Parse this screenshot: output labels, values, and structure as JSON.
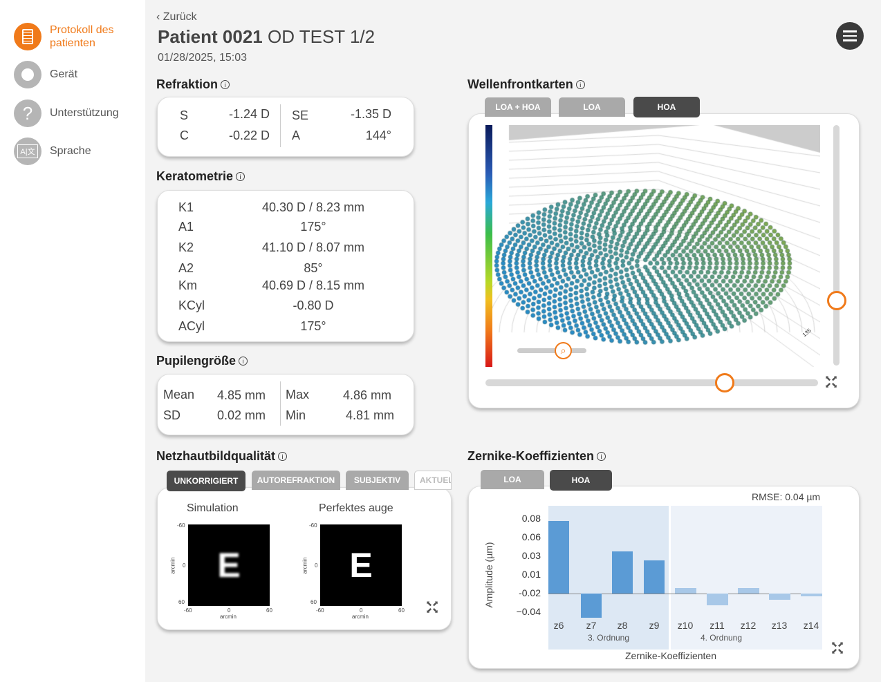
{
  "sidebar": {
    "items": [
      {
        "label": "Protokoll des patienten",
        "icon": "clipboard-icon"
      },
      {
        "label": "Gerät",
        "icon": "device-icon"
      },
      {
        "label": "Unterstützung",
        "icon": "help-icon"
      },
      {
        "label": "Sprache",
        "icon": "language-icon"
      }
    ]
  },
  "header": {
    "back": "Zurück",
    "patient": "Patient 0021",
    "test": "OD TEST 1/2",
    "datetime": "01/28/2025, 15:03"
  },
  "refraktion": {
    "title": "Refraktion",
    "rows": [
      [
        "S",
        "-1.24 D",
        "SE",
        "-1.35 D"
      ],
      [
        "C",
        "-0.22 D",
        "A",
        "144°"
      ]
    ]
  },
  "keratometrie": {
    "title": "Keratometrie",
    "rows": [
      [
        "K1",
        "40.30 D / 8.23 mm"
      ],
      [
        "A1",
        "175°"
      ],
      [
        "K2",
        "41.10 D / 8.07 mm"
      ],
      [
        "A2",
        "85°"
      ],
      [
        "Km",
        "40.69 D / 8.15 mm"
      ],
      [
        "KCyl",
        "-0.80 D"
      ],
      [
        "ACyl",
        "175°"
      ]
    ]
  },
  "pupil": {
    "title": "Pupilengröße",
    "rows": [
      [
        "Mean",
        "4.85 mm",
        "Max",
        "4.86 mm"
      ],
      [
        "SD",
        "0.02 mm",
        "Min",
        "4.81 mm"
      ]
    ]
  },
  "netzhaut": {
    "title": "Netzhautbildqualität",
    "tabs": [
      "UNKORRIGIERT",
      "AUTOREFRAKTION",
      "SUBJEKTIV",
      "AKTUELL"
    ],
    "sim_title": "Simulation",
    "perfect_title": "Perfektes auge",
    "letter": "E",
    "axis_label": "arcmin",
    "ticks": [
      "-60",
      "0",
      "60"
    ]
  },
  "wavefront": {
    "title": "Wellenfrontkarten",
    "tabs": [
      "LOA + HOA",
      "LOA",
      "HOA"
    ],
    "selected": "HOA",
    "axis_marker": "135",
    "vertical_slider": 0.27,
    "horizontal_slider": 0.72
  },
  "zernike": {
    "title": "Zernike-Koeffizienten",
    "tabs": [
      "LOA",
      "HOA"
    ],
    "selected": "HOA",
    "rmse": "RMSE: 0.04 µm"
  },
  "chart_data": {
    "type": "bar",
    "title": "",
    "xlabel": "Zernike-Koeffizienten",
    "ylabel": "Amplitude (µm)",
    "ytick_labels": [
      "0.08",
      "0.06",
      "0.03",
      "0.01",
      "-0.02",
      "−0.04"
    ],
    "categories": [
      "z6",
      "z7",
      "z8",
      "z9",
      "z10",
      "z11",
      "z12",
      "z13",
      "z14"
    ],
    "values": [
      0.078,
      -0.026,
      0.045,
      0.036,
      0.006,
      -0.013,
      0.006,
      -0.007,
      -0.003
    ],
    "groups": [
      {
        "name": "3. Ordnung",
        "members": [
          "z6",
          "z7",
          "z8",
          "z9"
        ],
        "color": "#5b9bd5"
      },
      {
        "name": "4. Ordnung",
        "members": [
          "z10",
          "z11",
          "z12",
          "z13",
          "z14"
        ],
        "color": "#a8c8e8"
      }
    ]
  },
  "colors": {
    "accent": "#f07a1a",
    "dark": "#4a4a4a"
  }
}
